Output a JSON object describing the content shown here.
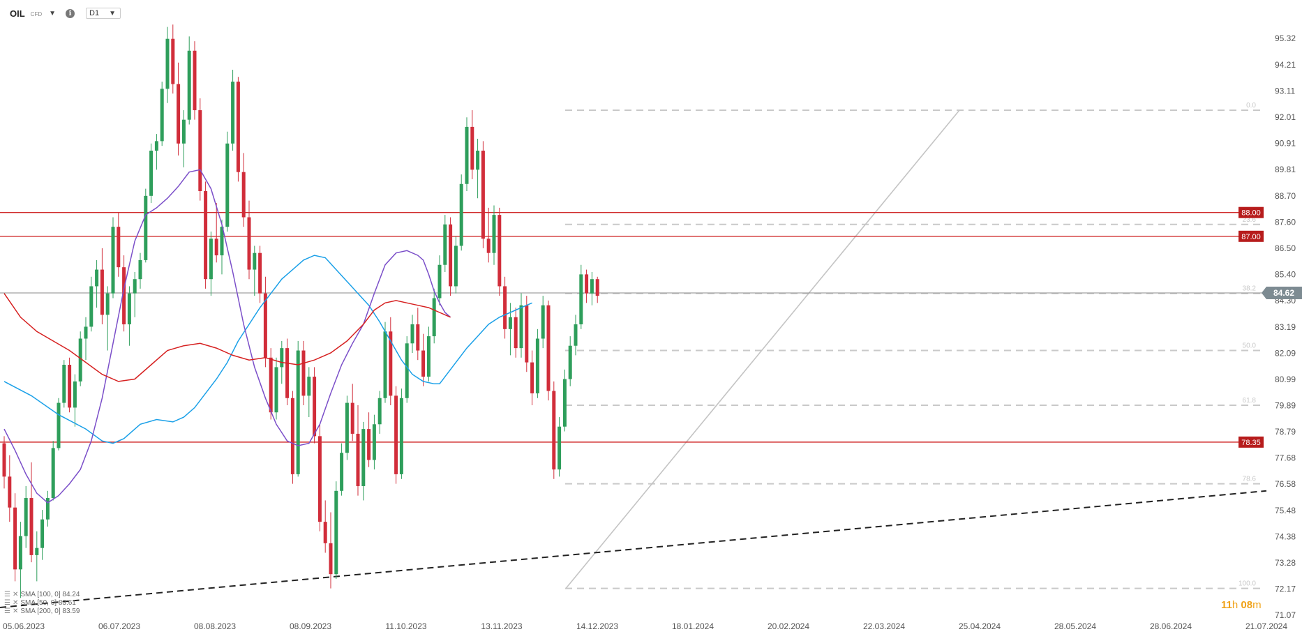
{
  "header": {
    "symbol": "OIL",
    "symbol_type": "CFD",
    "timeframe": "D1"
  },
  "legend": [
    {
      "label": "SMA [100, 0] 84.24",
      "color": "#1aa0e8"
    },
    {
      "label": "SMA [50, 0] 83.61",
      "color": "#7b4fc9"
    },
    {
      "label": "SMA [200, 0] 83.59",
      "color": "#d62020"
    }
  ],
  "countdown": {
    "hours": "11",
    "h_unit": "h",
    "minutes": "08",
    "m_unit": "m"
  },
  "chart_data": {
    "type": "candlestick",
    "instrument": "OIL CFD",
    "timeframe": "D1",
    "y_ticks": [
      95.32,
      94.21,
      93.11,
      92.01,
      90.91,
      89.81,
      88.7,
      87.6,
      86.5,
      85.4,
      84.3,
      83.19,
      82.09,
      80.99,
      79.89,
      78.79,
      77.68,
      76.58,
      75.48,
      74.38,
      73.28,
      72.17,
      71.07
    ],
    "x_ticks": [
      "05.06.2023",
      "06.07.2023",
      "08.08.2023",
      "08.09.2023",
      "11.10.2023",
      "13.11.2023",
      "14.12.2023",
      "18.01.2024",
      "20.02.2024",
      "22.03.2024",
      "25.04.2024",
      "28.05.2024",
      "28.06.2024",
      "21.07.2024"
    ],
    "current_price": {
      "value": "84.62",
      "color": "#7d8b92"
    },
    "horizontal_levels": [
      {
        "value": 88.0,
        "label": "88.00"
      },
      {
        "value": 87.0,
        "label": "87.00"
      },
      {
        "value": 78.35,
        "label": "78.35"
      }
    ],
    "fibonacci": [
      {
        "level": "0.0",
        "price": 92.3
      },
      {
        "level": "23.6",
        "price": 87.5
      },
      {
        "level": "38.2",
        "price": 84.6
      },
      {
        "level": "50.0",
        "price": 82.2
      },
      {
        "level": "61.8",
        "price": 79.9
      },
      {
        "level": "78.6",
        "price": 76.6
      },
      {
        "level": "100.0",
        "price": 72.2
      }
    ],
    "trendline": {
      "from": [
        "05.06.2023",
        71.4
      ],
      "to": [
        "21.07.2024",
        76.3
      ],
      "style": "dashed"
    },
    "series": [
      {
        "name": "SMA [100, 0]",
        "value": 84.24,
        "color": "#1aa0e8",
        "points": [
          [
            0,
            80.9
          ],
          [
            5,
            80.3
          ],
          [
            10,
            79.5
          ],
          [
            15,
            78.9
          ],
          [
            18,
            78.4
          ],
          [
            20,
            78.3
          ],
          [
            22,
            78.5
          ],
          [
            25,
            79.1
          ],
          [
            28,
            79.3
          ],
          [
            31,
            79.2
          ],
          [
            33,
            79.4
          ],
          [
            35,
            79.8
          ],
          [
            37,
            80.4
          ],
          [
            39,
            81.0
          ],
          [
            41,
            81.7
          ],
          [
            43,
            82.6
          ],
          [
            45,
            83.3
          ],
          [
            47,
            84.0
          ],
          [
            49,
            84.6
          ],
          [
            51,
            85.2
          ],
          [
            53,
            85.6
          ],
          [
            55,
            86.0
          ],
          [
            57,
            86.2
          ],
          [
            59,
            86.1
          ],
          [
            61,
            85.6
          ],
          [
            63,
            85.1
          ],
          [
            65,
            84.6
          ],
          [
            67,
            84.1
          ],
          [
            69,
            83.4
          ],
          [
            71,
            82.6
          ],
          [
            73,
            81.8
          ],
          [
            75,
            81.2
          ],
          [
            77,
            80.9
          ],
          [
            79,
            80.8
          ],
          [
            80,
            80.8
          ],
          [
            81,
            81.1
          ],
          [
            83,
            81.7
          ],
          [
            85,
            82.3
          ],
          [
            87,
            82.8
          ],
          [
            89,
            83.3
          ],
          [
            91,
            83.6
          ],
          [
            93,
            83.8
          ],
          [
            95,
            84.0
          ],
          [
            96,
            84.1
          ],
          [
            97,
            84.2
          ]
        ]
      },
      {
        "name": "SMA [50, 0]",
        "value": 83.61,
        "color": "#7b4fc9",
        "points": [
          [
            0,
            78.9
          ],
          [
            2,
            78.0
          ],
          [
            4,
            77.0
          ],
          [
            6,
            76.2
          ],
          [
            8,
            75.8
          ],
          [
            10,
            76.1
          ],
          [
            12,
            76.6
          ],
          [
            14,
            77.2
          ],
          [
            16,
            78.4
          ],
          [
            18,
            80.2
          ],
          [
            20,
            82.5
          ],
          [
            22,
            84.8
          ],
          [
            24,
            86.8
          ],
          [
            26,
            87.9
          ],
          [
            28,
            88.2
          ],
          [
            30,
            88.6
          ],
          [
            32,
            89.1
          ],
          [
            34,
            89.7
          ],
          [
            36,
            89.8
          ],
          [
            38,
            89.0
          ],
          [
            40,
            87.5
          ],
          [
            42,
            85.5
          ],
          [
            44,
            83.3
          ],
          [
            46,
            81.5
          ],
          [
            48,
            80.2
          ],
          [
            50,
            79.1
          ],
          [
            52,
            78.4
          ],
          [
            54,
            78.2
          ],
          [
            56,
            78.3
          ],
          [
            58,
            79.1
          ],
          [
            60,
            80.4
          ],
          [
            62,
            81.6
          ],
          [
            64,
            82.5
          ],
          [
            66,
            83.3
          ],
          [
            68,
            84.6
          ],
          [
            70,
            85.8
          ],
          [
            72,
            86.3
          ],
          [
            74,
            86.4
          ],
          [
            76,
            86.2
          ],
          [
            77,
            86.0
          ],
          [
            78,
            85.4
          ],
          [
            79,
            84.7
          ],
          [
            80,
            84.2
          ],
          [
            81,
            83.8
          ],
          [
            82,
            83.6
          ]
        ]
      },
      {
        "name": "SMA [200, 0]",
        "value": 83.59,
        "color": "#d62020",
        "points": [
          [
            0,
            84.6
          ],
          [
            3,
            83.6
          ],
          [
            6,
            83.0
          ],
          [
            9,
            82.6
          ],
          [
            12,
            82.2
          ],
          [
            15,
            81.7
          ],
          [
            18,
            81.2
          ],
          [
            21,
            80.9
          ],
          [
            24,
            81.0
          ],
          [
            27,
            81.6
          ],
          [
            30,
            82.2
          ],
          [
            33,
            82.4
          ],
          [
            36,
            82.5
          ],
          [
            39,
            82.3
          ],
          [
            42,
            82.0
          ],
          [
            45,
            81.8
          ],
          [
            48,
            81.9
          ],
          [
            51,
            81.7
          ],
          [
            54,
            81.6
          ],
          [
            57,
            81.8
          ],
          [
            60,
            82.1
          ],
          [
            63,
            82.6
          ],
          [
            66,
            83.3
          ],
          [
            68,
            83.9
          ],
          [
            70,
            84.2
          ],
          [
            72,
            84.3
          ],
          [
            74,
            84.2
          ],
          [
            76,
            84.1
          ],
          [
            78,
            84.0
          ],
          [
            80,
            83.8
          ],
          [
            82,
            83.6
          ]
        ]
      }
    ],
    "candles_ohlc": [
      [
        78.3,
        78.6,
        76.4,
        76.9
      ],
      [
        76.9,
        77.8,
        75.0,
        75.6
      ],
      [
        75.6,
        76.2,
        72.5,
        73.0
      ],
      [
        73.0,
        75.0,
        71.8,
        74.4
      ],
      [
        74.4,
        76.5,
        73.9,
        76.0
      ],
      [
        76.0,
        77.5,
        73.3,
        73.6
      ],
      [
        73.6,
        74.6,
        72.5,
        73.9
      ],
      [
        73.9,
        75.5,
        73.4,
        75.1
      ],
      [
        75.1,
        76.3,
        74.8,
        76.0
      ],
      [
        76.0,
        78.4,
        75.9,
        78.1
      ],
      [
        78.1,
        80.2,
        78.0,
        80.0
      ],
      [
        80.0,
        81.8,
        79.8,
        81.6
      ],
      [
        81.6,
        81.9,
        79.6,
        79.8
      ],
      [
        79.8,
        81.2,
        79.0,
        80.9
      ],
      [
        80.9,
        83.0,
        80.7,
        82.7
      ],
      [
        82.7,
        83.6,
        81.8,
        83.2
      ],
      [
        83.2,
        85.3,
        83.0,
        84.9
      ],
      [
        84.9,
        86.0,
        84.0,
        85.6
      ],
      [
        85.6,
        86.5,
        83.3,
        83.7
      ],
      [
        83.7,
        84.9,
        82.2,
        84.6
      ],
      [
        84.6,
        87.8,
        84.4,
        87.4
      ],
      [
        87.4,
        88.0,
        85.3,
        85.7
      ],
      [
        85.7,
        86.2,
        83.0,
        83.3
      ],
      [
        83.3,
        84.9,
        82.4,
        84.6
      ],
      [
        84.6,
        85.5,
        83.6,
        85.2
      ],
      [
        85.2,
        86.3,
        84.8,
        86.0
      ],
      [
        86.0,
        89.0,
        85.9,
        88.7
      ],
      [
        88.7,
        90.9,
        88.4,
        90.6
      ],
      [
        90.6,
        91.3,
        89.8,
        91.0
      ],
      [
        91.0,
        93.5,
        90.8,
        93.2
      ],
      [
        93.2,
        95.8,
        92.6,
        95.3
      ],
      [
        95.3,
        95.9,
        93.0,
        93.4
      ],
      [
        93.4,
        94.3,
        90.4,
        90.9
      ],
      [
        90.9,
        92.3,
        89.9,
        91.9
      ],
      [
        91.9,
        95.4,
        91.7,
        94.8
      ],
      [
        94.8,
        95.2,
        91.9,
        92.3
      ],
      [
        92.3,
        92.8,
        88.5,
        88.9
      ],
      [
        88.9,
        89.3,
        84.8,
        85.2
      ],
      [
        85.2,
        87.2,
        84.5,
        86.9
      ],
      [
        86.9,
        88.4,
        85.9,
        86.2
      ],
      [
        86.2,
        87.7,
        85.4,
        87.4
      ],
      [
        87.4,
        91.4,
        87.2,
        90.9
      ],
      [
        90.9,
        94.0,
        90.6,
        93.5
      ],
      [
        93.5,
        93.7,
        89.3,
        89.7
      ],
      [
        89.7,
        90.5,
        87.4,
        87.8
      ],
      [
        87.8,
        88.5,
        85.2,
        85.6
      ],
      [
        85.6,
        86.6,
        84.5,
        86.3
      ],
      [
        86.3,
        86.6,
        84.2,
        84.6
      ],
      [
        84.6,
        85.3,
        81.5,
        81.9
      ],
      [
        81.9,
        82.3,
        79.3,
        79.6
      ],
      [
        79.6,
        81.9,
        79.3,
        81.5
      ],
      [
        81.5,
        82.6,
        80.8,
        82.3
      ],
      [
        82.3,
        82.7,
        79.9,
        80.2
      ],
      [
        80.2,
        80.5,
        76.6,
        77.0
      ],
      [
        77.0,
        82.6,
        76.9,
        82.2
      ],
      [
        82.2,
        82.6,
        79.9,
        80.3
      ],
      [
        80.3,
        81.5,
        79.4,
        81.1
      ],
      [
        81.1,
        81.5,
        78.3,
        78.6
      ],
      [
        78.6,
        79.1,
        74.6,
        75.0
      ],
      [
        75.0,
        75.9,
        73.7,
        74.1
      ],
      [
        74.1,
        75.4,
        72.2,
        72.8
      ],
      [
        72.8,
        76.7,
        72.6,
        76.3
      ],
      [
        76.3,
        78.3,
        76.1,
        77.9
      ],
      [
        77.9,
        80.3,
        77.6,
        80.0
      ],
      [
        80.0,
        80.8,
        78.4,
        78.7
      ],
      [
        78.7,
        79.9,
        76.1,
        76.5
      ],
      [
        76.5,
        79.2,
        75.9,
        78.9
      ],
      [
        78.9,
        79.6,
        77.3,
        77.6
      ],
      [
        77.6,
        79.5,
        77.2,
        79.1
      ],
      [
        79.1,
        80.5,
        78.7,
        80.2
      ],
      [
        80.2,
        83.4,
        80.0,
        83.0
      ],
      [
        83.0,
        83.6,
        79.9,
        80.3
      ],
      [
        80.3,
        80.7,
        76.6,
        77.0
      ],
      [
        77.0,
        80.6,
        76.8,
        80.2
      ],
      [
        80.2,
        82.8,
        80.0,
        82.5
      ],
      [
        82.5,
        83.7,
        82.1,
        83.3
      ],
      [
        83.3,
        84.0,
        81.8,
        82.2
      ],
      [
        82.2,
        82.9,
        80.7,
        81.1
      ],
      [
        81.1,
        83.2,
        80.9,
        82.8
      ],
      [
        82.8,
        84.8,
        82.5,
        84.4
      ],
      [
        84.4,
        86.2,
        84.1,
        85.8
      ],
      [
        85.8,
        87.9,
        85.5,
        87.5
      ],
      [
        87.5,
        87.8,
        84.5,
        84.9
      ],
      [
        84.9,
        87.0,
        84.6,
        86.6
      ],
      [
        86.6,
        89.6,
        86.4,
        89.2
      ],
      [
        89.2,
        92.0,
        88.9,
        91.6
      ],
      [
        91.6,
        92.3,
        89.4,
        89.8
      ],
      [
        89.8,
        91.1,
        88.6,
        90.6
      ],
      [
        90.6,
        91.0,
        86.5,
        86.9
      ],
      [
        86.9,
        88.2,
        85.9,
        86.3
      ],
      [
        86.3,
        88.3,
        85.8,
        87.9
      ],
      [
        87.9,
        88.2,
        84.5,
        84.9
      ],
      [
        84.9,
        85.3,
        82.7,
        83.1
      ],
      [
        83.1,
        84.2,
        82.0,
        83.6
      ],
      [
        83.6,
        84.0,
        81.9,
        82.3
      ],
      [
        82.3,
        84.6,
        81.9,
        84.1
      ],
      [
        84.1,
        84.5,
        81.3,
        81.7
      ],
      [
        81.7,
        82.2,
        79.9,
        80.4
      ],
      [
        80.4,
        83.1,
        80.2,
        82.7
      ],
      [
        82.7,
        84.5,
        82.3,
        84.1
      ],
      [
        84.1,
        84.3,
        80.1,
        80.5
      ],
      [
        80.5,
        80.9,
        76.8,
        77.2
      ],
      [
        77.2,
        79.4,
        76.9,
        79.0
      ],
      [
        79.0,
        81.4,
        78.8,
        81.0
      ],
      [
        81.0,
        82.8,
        80.7,
        82.4
      ],
      [
        82.4,
        83.7,
        82.0,
        83.3
      ],
      [
        83.3,
        85.8,
        83.1,
        85.4
      ],
      [
        85.4,
        85.6,
        84.2,
        84.6
      ],
      [
        84.6,
        85.5,
        84.1,
        85.2
      ],
      [
        85.2,
        85.3,
        84.2,
        84.5
      ]
    ]
  }
}
